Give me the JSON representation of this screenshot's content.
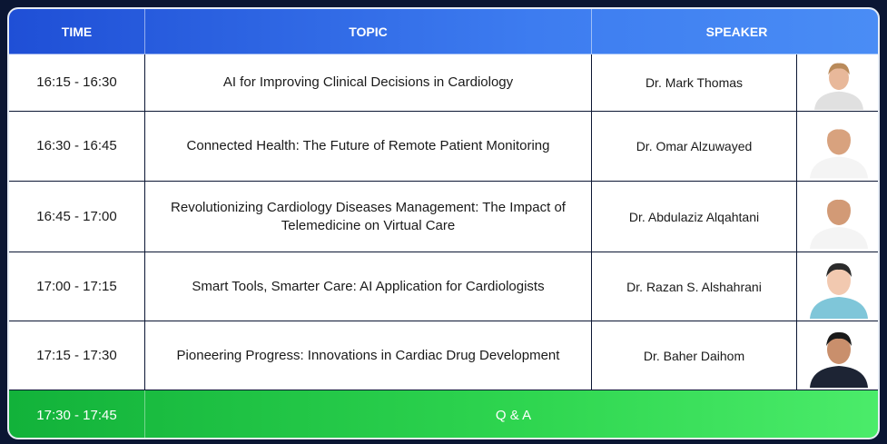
{
  "header": {
    "time": "TIME",
    "topic": "TOPIC",
    "speaker": "SPEAKER"
  },
  "rows": [
    {
      "time": "16:15 - 16:30",
      "topic": "AI for Improving Clinical Decisions in Cardiology",
      "speaker": "Dr. Mark Thomas"
    },
    {
      "time": "16:30 - 16:45",
      "topic": "Connected Health: The Future of Remote Patient Monitoring",
      "speaker": "Dr. Omar Alzuwayed"
    },
    {
      "time": "16:45 - 17:00",
      "topic": "Revolutionizing Cardiology Diseases Management: The Impact of Telemedicine on Virtual Care",
      "speaker": "Dr. Abdulaziz Alqahtani"
    },
    {
      "time": "17:00 - 17:15",
      "topic": "Smart Tools, Smarter Care: AI Application for Cardiologists",
      "speaker": "Dr. Razan S. Alshahrani"
    },
    {
      "time": "17:15 - 17:30",
      "topic": "Pioneering Progress: Innovations in Cardiac Drug Development",
      "speaker": "Dr. Baher Daihom"
    }
  ],
  "qa": {
    "time": "17:30 - 17:45",
    "label": "Q & A"
  }
}
